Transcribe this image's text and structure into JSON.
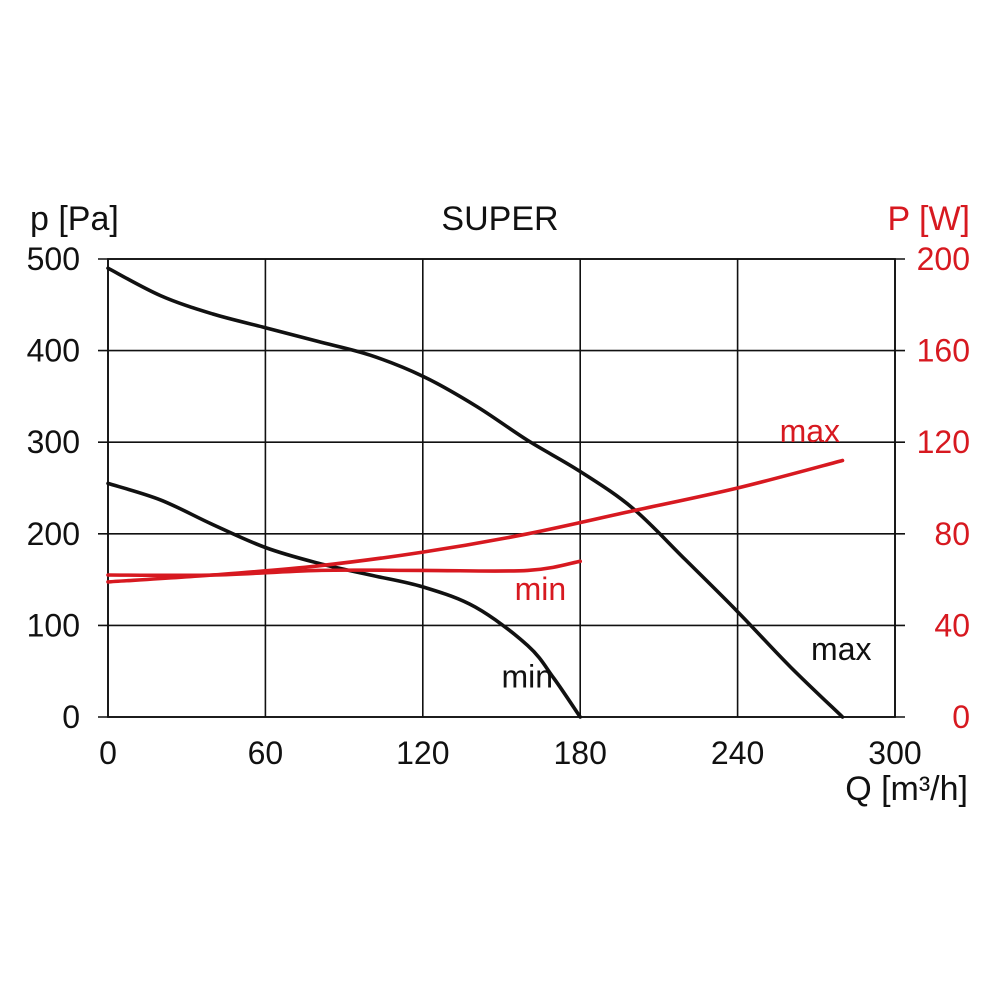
{
  "chart_data": {
    "type": "line",
    "title": "SUPER",
    "ylabel_left": "p [Pa]",
    "ylabel_right": "P [W]",
    "xlabel": "Q [m³/h]",
    "xlim": [
      0,
      300
    ],
    "ylim_left": [
      0,
      500
    ],
    "ylim_right": [
      0,
      200
    ],
    "xticks": [
      0,
      60,
      120,
      180,
      240,
      300
    ],
    "yticks_left": [
      0,
      100,
      200,
      300,
      400,
      500
    ],
    "yticks_right": [
      0,
      40,
      80,
      120,
      160,
      200
    ],
    "grid": true,
    "colors": {
      "pressure": "#111111",
      "power": "#d71920"
    },
    "series": [
      {
        "axis": "left",
        "color": "#111111",
        "label": "max",
        "label_at": [
          268,
          62
        ],
        "x": [
          0,
          20,
          40,
          60,
          80,
          100,
          120,
          140,
          160,
          180,
          200,
          220,
          240,
          260,
          280
        ],
        "y": [
          490,
          460,
          440,
          425,
          410,
          395,
          372,
          340,
          302,
          268,
          228,
          172,
          115,
          55,
          0
        ]
      },
      {
        "axis": "left",
        "color": "#111111",
        "label": "min",
        "label_at": [
          150,
          32
        ],
        "x": [
          0,
          20,
          40,
          60,
          80,
          100,
          120,
          140,
          160,
          170,
          180
        ],
        "y": [
          255,
          237,
          210,
          185,
          168,
          155,
          142,
          120,
          78,
          42,
          0
        ]
      },
      {
        "axis": "right",
        "color": "#d71920",
        "label": "max",
        "label_at": [
          256,
          120
        ],
        "x": [
          0,
          40,
          80,
          120,
          160,
          200,
          240,
          280
        ],
        "y": [
          59,
          62,
          66,
          72,
          80,
          90,
          100,
          112
        ]
      },
      {
        "axis": "right",
        "color": "#d71920",
        "label": "min",
        "label_at": [
          155,
          51
        ],
        "x": [
          0,
          40,
          80,
          120,
          160,
          180
        ],
        "y": [
          62,
          62,
          64,
          64,
          64,
          68
        ]
      }
    ]
  }
}
